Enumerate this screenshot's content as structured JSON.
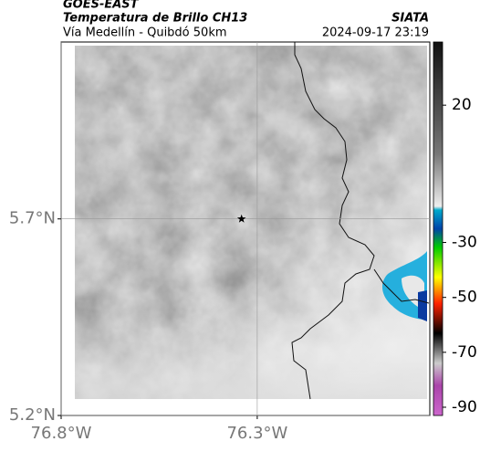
{
  "header": {
    "satellite": "GOES-EAST",
    "product": "Temperatura de Brillo CH13",
    "source": "SIATA",
    "region": "Vía Medellín - Quibdó 50km",
    "timestamp": "2024-09-17 23:19"
  },
  "map": {
    "xlim": [
      -76.8,
      -75.86
    ],
    "ylim": [
      5.2,
      6.15
    ],
    "xticks": [
      {
        "value": -76.8,
        "label": "76.8°W"
      },
      {
        "value": -76.3,
        "label": "76.3°W"
      }
    ],
    "yticks": [
      {
        "value": 5.2,
        "label": "5.2°N"
      },
      {
        "value": 5.7,
        "label": "5.7°N"
      }
    ],
    "grid": true,
    "marker": {
      "lon": -76.34,
      "lat": 5.7
    }
  },
  "colorbar": {
    "clim": [
      -93,
      43
    ],
    "ticks": [
      20,
      -30,
      -50,
      -70,
      -90
    ]
  }
}
